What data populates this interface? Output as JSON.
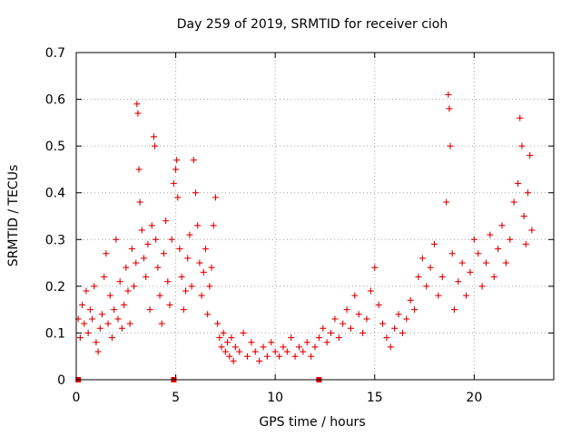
{
  "chart_data": {
    "type": "scatter",
    "title": "Day 259 of 2019, SRMTID for receiver cioh",
    "xlabel": "GPS time / hours",
    "ylabel": "SRMTID / TECUs",
    "xlim": [
      0,
      24
    ],
    "ylim": [
      0,
      0.7
    ],
    "x_ticks": [
      0,
      5,
      10,
      15,
      20
    ],
    "x_tick_labels": [
      "0",
      "5",
      "10",
      "15",
      "20"
    ],
    "y_ticks": [
      0,
      0.1,
      0.2,
      0.3,
      0.4,
      0.5,
      0.6,
      0.7
    ],
    "y_tick_labels": [
      "0",
      "0.1",
      "0.2",
      "0.3",
      "0.4",
      "0.5",
      "0.6",
      "0.7"
    ],
    "grid": true,
    "marker": "+",
    "color": "#e00000",
    "data_gap_markers_x": [
      0.1,
      4.9,
      12.2
    ],
    "series": [
      {
        "name": "SRMTID",
        "points": [
          [
            0.1,
            0.13
          ],
          [
            0.2,
            0.09
          ],
          [
            0.3,
            0.16
          ],
          [
            0.4,
            0.12
          ],
          [
            0.5,
            0.19
          ],
          [
            0.6,
            0.1
          ],
          [
            0.7,
            0.15
          ],
          [
            0.8,
            0.13
          ],
          [
            0.9,
            0.2
          ],
          [
            1.0,
            0.08
          ],
          [
            1.1,
            0.06
          ],
          [
            1.2,
            0.11
          ],
          [
            1.3,
            0.14
          ],
          [
            1.4,
            0.22
          ],
          [
            1.5,
            0.27
          ],
          [
            1.6,
            0.12
          ],
          [
            1.7,
            0.18
          ],
          [
            1.8,
            0.09
          ],
          [
            1.9,
            0.15
          ],
          [
            2.0,
            0.3
          ],
          [
            2.1,
            0.13
          ],
          [
            2.2,
            0.21
          ],
          [
            2.3,
            0.11
          ],
          [
            2.4,
            0.16
          ],
          [
            2.5,
            0.24
          ],
          [
            2.6,
            0.19
          ],
          [
            2.7,
            0.12
          ],
          [
            2.8,
            0.28
          ],
          [
            2.9,
            0.2
          ],
          [
            3.0,
            0.25
          ],
          [
            3.05,
            0.59
          ],
          [
            3.1,
            0.57
          ],
          [
            3.15,
            0.45
          ],
          [
            3.2,
            0.38
          ],
          [
            3.3,
            0.32
          ],
          [
            3.4,
            0.26
          ],
          [
            3.5,
            0.22
          ],
          [
            3.6,
            0.29
          ],
          [
            3.7,
            0.15
          ],
          [
            3.8,
            0.33
          ],
          [
            3.9,
            0.52
          ],
          [
            3.95,
            0.5
          ],
          [
            4.0,
            0.3
          ],
          [
            4.1,
            0.24
          ],
          [
            4.2,
            0.18
          ],
          [
            4.3,
            0.12
          ],
          [
            4.4,
            0.27
          ],
          [
            4.5,
            0.34
          ],
          [
            4.6,
            0.21
          ],
          [
            4.7,
            0.16
          ],
          [
            4.8,
            0.3
          ],
          [
            4.9,
            0.42
          ],
          [
            5.0,
            0.45
          ],
          [
            5.05,
            0.47
          ],
          [
            5.1,
            0.39
          ],
          [
            5.2,
            0.28
          ],
          [
            5.3,
            0.22
          ],
          [
            5.4,
            0.15
          ],
          [
            5.5,
            0.19
          ],
          [
            5.6,
            0.26
          ],
          [
            5.7,
            0.31
          ],
          [
            5.8,
            0.2
          ],
          [
            5.9,
            0.47
          ],
          [
            6.0,
            0.4
          ],
          [
            6.1,
            0.33
          ],
          [
            6.2,
            0.25
          ],
          [
            6.3,
            0.18
          ],
          [
            6.4,
            0.23
          ],
          [
            6.5,
            0.28
          ],
          [
            6.6,
            0.14
          ],
          [
            6.7,
            0.2
          ],
          [
            6.8,
            0.24
          ],
          [
            6.9,
            0.33
          ],
          [
            7.0,
            0.39
          ],
          [
            7.1,
            0.12
          ],
          [
            7.2,
            0.09
          ],
          [
            7.3,
            0.07
          ],
          [
            7.4,
            0.1
          ],
          [
            7.5,
            0.06
          ],
          [
            7.6,
            0.08
          ],
          [
            7.7,
            0.05
          ],
          [
            7.8,
            0.09
          ],
          [
            7.9,
            0.04
          ],
          [
            8.0,
            0.07
          ],
          [
            8.2,
            0.06
          ],
          [
            8.4,
            0.1
          ],
          [
            8.6,
            0.05
          ],
          [
            8.8,
            0.08
          ],
          [
            9.0,
            0.06
          ],
          [
            9.2,
            0.04
          ],
          [
            9.4,
            0.07
          ],
          [
            9.6,
            0.05
          ],
          [
            9.8,
            0.08
          ],
          [
            10.0,
            0.06
          ],
          [
            10.2,
            0.05
          ],
          [
            10.4,
            0.07
          ],
          [
            10.6,
            0.06
          ],
          [
            10.8,
            0.09
          ],
          [
            11.0,
            0.05
          ],
          [
            11.2,
            0.07
          ],
          [
            11.4,
            0.06
          ],
          [
            11.6,
            0.08
          ],
          [
            11.8,
            0.05
          ],
          [
            12.0,
            0.07
          ],
          [
            12.2,
            0.09
          ],
          [
            12.4,
            0.11
          ],
          [
            12.6,
            0.08
          ],
          [
            12.8,
            0.1
          ],
          [
            13.0,
            0.13
          ],
          [
            13.2,
            0.09
          ],
          [
            13.4,
            0.12
          ],
          [
            13.6,
            0.15
          ],
          [
            13.8,
            0.11
          ],
          [
            14.0,
            0.18
          ],
          [
            14.2,
            0.14
          ],
          [
            14.4,
            0.1
          ],
          [
            14.6,
            0.13
          ],
          [
            14.8,
            0.19
          ],
          [
            15.0,
            0.24
          ],
          [
            15.2,
            0.16
          ],
          [
            15.4,
            0.12
          ],
          [
            15.6,
            0.09
          ],
          [
            15.8,
            0.07
          ],
          [
            16.0,
            0.11
          ],
          [
            16.2,
            0.14
          ],
          [
            16.4,
            0.1
          ],
          [
            16.6,
            0.13
          ],
          [
            16.8,
            0.17
          ],
          [
            17.0,
            0.15
          ],
          [
            17.2,
            0.22
          ],
          [
            17.4,
            0.26
          ],
          [
            17.6,
            0.2
          ],
          [
            17.8,
            0.24
          ],
          [
            18.0,
            0.29
          ],
          [
            18.2,
            0.18
          ],
          [
            18.4,
            0.22
          ],
          [
            18.6,
            0.38
          ],
          [
            18.7,
            0.61
          ],
          [
            18.75,
            0.58
          ],
          [
            18.8,
            0.5
          ],
          [
            18.9,
            0.27
          ],
          [
            19.0,
            0.15
          ],
          [
            19.2,
            0.21
          ],
          [
            19.4,
            0.25
          ],
          [
            19.6,
            0.18
          ],
          [
            19.8,
            0.23
          ],
          [
            20.0,
            0.3
          ],
          [
            20.2,
            0.27
          ],
          [
            20.4,
            0.2
          ],
          [
            20.6,
            0.25
          ],
          [
            20.8,
            0.31
          ],
          [
            21.0,
            0.22
          ],
          [
            21.2,
            0.28
          ],
          [
            21.4,
            0.33
          ],
          [
            21.6,
            0.25
          ],
          [
            21.8,
            0.3
          ],
          [
            22.0,
            0.38
          ],
          [
            22.2,
            0.42
          ],
          [
            22.3,
            0.56
          ],
          [
            22.4,
            0.5
          ],
          [
            22.5,
            0.35
          ],
          [
            22.6,
            0.29
          ],
          [
            22.7,
            0.4
          ],
          [
            22.8,
            0.48
          ],
          [
            22.9,
            0.32
          ]
        ]
      }
    ]
  }
}
